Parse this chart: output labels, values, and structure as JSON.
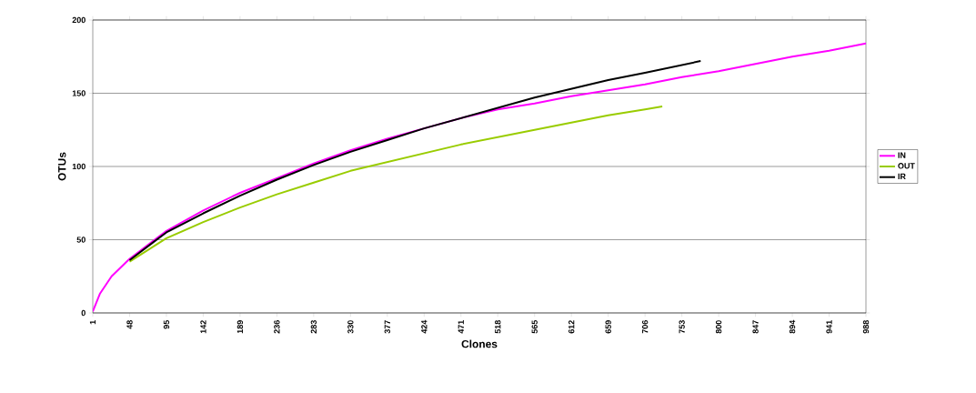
{
  "chart_data": {
    "type": "line",
    "xlabel": "Clones",
    "ylabel": "OTUs",
    "xlim": [
      1,
      988
    ],
    "ylim": [
      0,
      200
    ],
    "xticks": [
      1,
      48,
      95,
      142,
      189,
      236,
      283,
      330,
      377,
      424,
      471,
      518,
      565,
      612,
      659,
      706,
      753,
      800,
      847,
      894,
      941,
      988
    ],
    "yticks": [
      0,
      50,
      100,
      150,
      200
    ],
    "grid": "y",
    "legend": "right",
    "marker": "none",
    "line_style": "solid",
    "series": [
      {
        "name": "IN",
        "color": "#ff00ff",
        "x": [
          1,
          10,
          25,
          48,
          80,
          95,
          142,
          189,
          236,
          283,
          330,
          377,
          424,
          471,
          518,
          565,
          612,
          659,
          706,
          753,
          800,
          847,
          894,
          941,
          988
        ],
        "values": [
          1,
          13,
          25,
          37,
          50,
          56,
          70,
          82,
          92,
          102,
          111,
          119,
          126,
          133,
          139,
          143,
          148,
          152,
          156,
          161,
          165,
          170,
          175,
          179,
          184
        ]
      },
      {
        "name": "OUT",
        "color": "#99cc00",
        "x": [
          48,
          95,
          142,
          189,
          236,
          283,
          330,
          377,
          424,
          471,
          518,
          565,
          612,
          659,
          706,
          728
        ],
        "values": [
          35,
          51,
          62,
          72,
          81,
          89,
          97,
          103,
          109,
          115,
          120,
          125,
          130,
          135,
          139,
          141
        ]
      },
      {
        "name": "IR",
        "color": "#000000",
        "x": [
          48,
          80,
          95,
          142,
          189,
          236,
          283,
          330,
          377,
          424,
          471,
          518,
          565,
          612,
          659,
          706,
          777
        ],
        "values": [
          36,
          49,
          55,
          68,
          80,
          91,
          101,
          110,
          118,
          126,
          133,
          140,
          147,
          153,
          159,
          164,
          172
        ]
      }
    ]
  }
}
